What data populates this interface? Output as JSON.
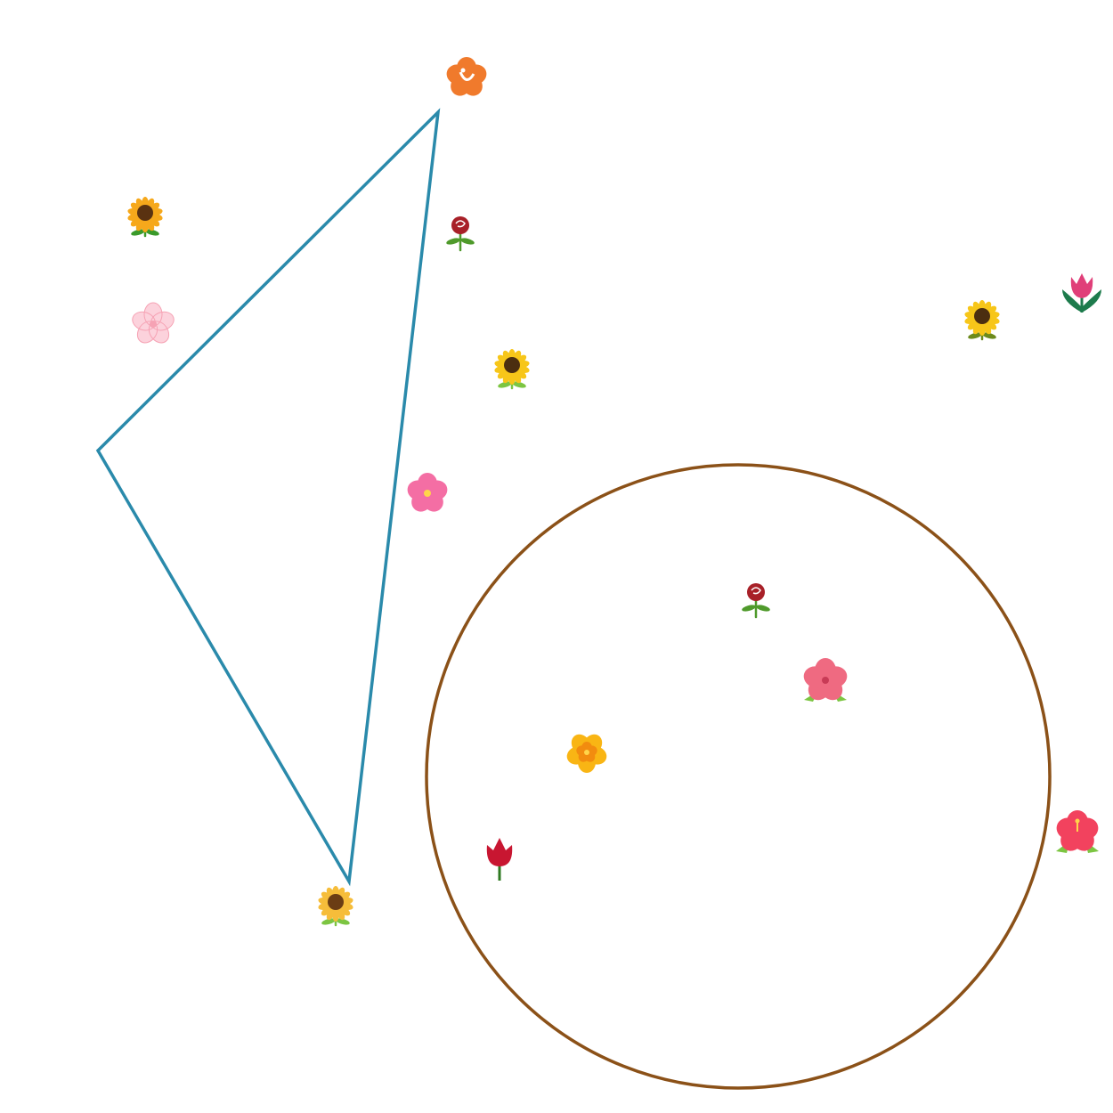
{
  "shapes": {
    "triangle": {
      "stroke_color": "#2a8aab"
    },
    "circle": {
      "stroke_color": "#8b5118"
    }
  },
  "icons": [
    {
      "name": "hibiscus-orange-icon",
      "colors": [
        "#f07a2c",
        "#ffffff"
      ]
    },
    {
      "name": "sunflower-icon",
      "colors": [
        "#f6a81b",
        "#5a3211",
        "#3a9a2a"
      ]
    },
    {
      "name": "rose-icon",
      "colors": [
        "#a82028",
        "#4f9a2b"
      ]
    },
    {
      "name": "cherry-blossom-icon",
      "colors": [
        "#fcd2dc",
        "#f6a2b4"
      ]
    },
    {
      "name": "sunflower-icon",
      "colors": [
        "#f7c619",
        "#4b2e10",
        "#6c8a1c"
      ]
    },
    {
      "name": "tulip-icon",
      "colors": [
        "#e03f79",
        "#1d7b4c"
      ]
    },
    {
      "name": "sunflower-icon",
      "colors": [
        "#f7c619",
        "#4b2e10",
        "#7cc542"
      ]
    },
    {
      "name": "pink-blossom-icon",
      "colors": [
        "#f46ea4",
        "#ffd54a"
      ]
    },
    {
      "name": "rose-icon",
      "colors": [
        "#a82028",
        "#4f9a2b"
      ]
    },
    {
      "name": "hibiscus-pink-icon",
      "colors": [
        "#ef6a81",
        "#7cc542"
      ]
    },
    {
      "name": "yellow-blossom-icon",
      "colors": [
        "#f9b514",
        "#f28c0f"
      ]
    },
    {
      "name": "red-tulip-icon",
      "colors": [
        "#c81631",
        "#2f7a22"
      ]
    },
    {
      "name": "sunflower-icon",
      "colors": [
        "#f6bd3a",
        "#6b3d14",
        "#7cc542"
      ]
    },
    {
      "name": "hibiscus-red-icon",
      "colors": [
        "#f2425e",
        "#ffd54a",
        "#7cc542"
      ]
    }
  ]
}
